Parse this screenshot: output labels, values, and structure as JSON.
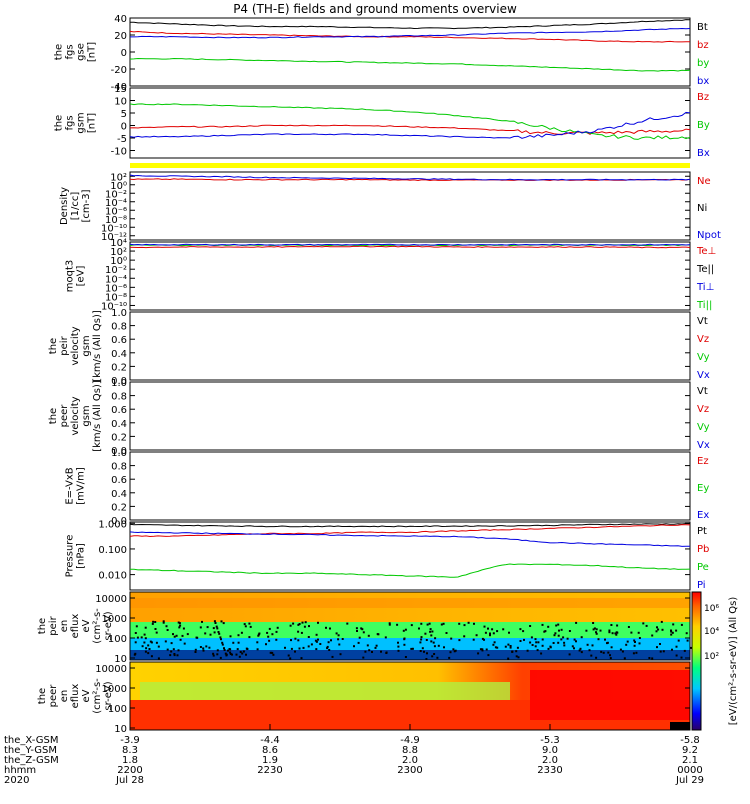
{
  "title": "P4 (TH-E) fields and ground moments overview",
  "colors": {
    "black": "#000000",
    "red": "#e00000",
    "green": "#00c800",
    "blue": "#0000e0",
    "yellow": "#ffff00"
  },
  "panels": [
    {
      "id": "fgs-gse",
      "ylabel_lines": [
        "the",
        "fgs",
        "gse",
        "[nT]"
      ],
      "ylim": [
        -40,
        40
      ],
      "ticks": [
        {
          "v": 40,
          "t": "40"
        },
        {
          "v": 20,
          "t": "20"
        },
        {
          "v": 0,
          "t": "0"
        },
        {
          "v": -20,
          "t": "-20"
        },
        {
          "v": -40,
          "t": "-40"
        }
      ],
      "legend": [
        {
          "t": "Bt",
          "c": "black"
        },
        {
          "t": "bz",
          "c": "red"
        },
        {
          "t": "by",
          "c": "green"
        },
        {
          "t": "bx",
          "c": "blue"
        }
      ]
    },
    {
      "id": "fgs-gsm",
      "ylabel_lines": [
        "the",
        "fgs",
        "gsm",
        "[nT]"
      ],
      "ylim": [
        -13,
        15
      ],
      "ticks": [
        {
          "v": 15,
          "t": "15"
        },
        {
          "v": 10,
          "t": "10"
        },
        {
          "v": 5,
          "t": "5"
        },
        {
          "v": 0,
          "t": "0"
        },
        {
          "v": -5,
          "t": "-5"
        },
        {
          "v": -10,
          "t": "-10"
        }
      ],
      "legend": [
        {
          "t": "Bz",
          "c": "red"
        },
        {
          "t": "By",
          "c": "green"
        },
        {
          "t": "Bx",
          "c": "blue"
        }
      ]
    },
    {
      "id": "density",
      "ylabel_lines": [
        "Density",
        "[1/cc]",
        "[cm-3]"
      ],
      "ylim": [
        -13,
        3
      ],
      "ticks": [
        {
          "v": 2,
          "t": "10²"
        },
        {
          "v": 0,
          "t": "10⁰"
        },
        {
          "v": -2,
          "t": "10⁻²"
        },
        {
          "v": -4,
          "t": "10⁻⁴"
        },
        {
          "v": -6,
          "t": "10⁻⁶"
        },
        {
          "v": -8,
          "t": "10⁻⁸"
        },
        {
          "v": -10,
          "t": "10⁻¹⁰"
        },
        {
          "v": -12,
          "t": "10⁻¹²"
        }
      ],
      "legend": [
        {
          "t": "Ne",
          "c": "red"
        },
        {
          "t": "Ni",
          "c": "black"
        },
        {
          "t": "Npot",
          "c": "blue"
        }
      ]
    },
    {
      "id": "temperature",
      "ylabel_lines": [
        "moqt3",
        "[eV]"
      ],
      "ylim": [
        -11,
        4
      ],
      "ticks": [
        {
          "v": 4,
          "t": "10⁴"
        },
        {
          "v": 2,
          "t": "10²"
        },
        {
          "v": 0,
          "t": "10⁰"
        },
        {
          "v": -2,
          "t": "10⁻²"
        },
        {
          "v": -4,
          "t": "10⁻⁴"
        },
        {
          "v": -6,
          "t": "10⁻⁶"
        },
        {
          "v": -8,
          "t": "10⁻⁸"
        },
        {
          "v": -10,
          "t": "10⁻¹⁰"
        }
      ],
      "legend": [
        {
          "t": "Te⊥",
          "c": "red"
        },
        {
          "t": "Te||",
          "c": "black"
        },
        {
          "t": "Ti⊥",
          "c": "blue"
        },
        {
          "t": "Ti||",
          "c": "green"
        }
      ]
    },
    {
      "id": "peir-velocity",
      "ylabel_lines": [
        "the",
        "peir",
        "velocity",
        "gsm",
        "[km/s (All Qs)]"
      ],
      "ylim": [
        0,
        1
      ],
      "ticks": [
        {
          "v": 1,
          "t": "1.0"
        },
        {
          "v": 0.8,
          "t": "0.8"
        },
        {
          "v": 0.6,
          "t": "0.6"
        },
        {
          "v": 0.4,
          "t": "0.4"
        },
        {
          "v": 0.2,
          "t": "0.2"
        },
        {
          "v": 0,
          "t": "0.0"
        }
      ],
      "legend": [
        {
          "t": "Vt",
          "c": "black"
        },
        {
          "t": "Vz",
          "c": "red"
        },
        {
          "t": "Vy",
          "c": "green"
        },
        {
          "t": "Vx",
          "c": "blue"
        }
      ]
    },
    {
      "id": "peer-velocity",
      "ylabel_lines": [
        "the",
        "peer",
        "velocity",
        "gsm",
        "[km/s (All Qs)]"
      ],
      "ylim": [
        0,
        1
      ],
      "ticks": [
        {
          "v": 1,
          "t": "1.0"
        },
        {
          "v": 0.8,
          "t": "0.8"
        },
        {
          "v": 0.6,
          "t": "0.6"
        },
        {
          "v": 0.4,
          "t": "0.4"
        },
        {
          "v": 0.2,
          "t": "0.2"
        },
        {
          "v": 0,
          "t": "0.0"
        }
      ],
      "legend": [
        {
          "t": "Vt",
          "c": "black"
        },
        {
          "t": "Vz",
          "c": "red"
        },
        {
          "t": "Vy",
          "c": "green"
        },
        {
          "t": "Vx",
          "c": "blue"
        }
      ]
    },
    {
      "id": "efield",
      "ylabel_lines": [
        "E=-VxB",
        "[mV/m]"
      ],
      "ylim": [
        0,
        1
      ],
      "ticks": [
        {
          "v": 1,
          "t": "1.0"
        },
        {
          "v": 0.8,
          "t": "0.8"
        },
        {
          "v": 0.6,
          "t": "0.6"
        },
        {
          "v": 0.4,
          "t": "0.4"
        },
        {
          "v": 0.2,
          "t": "0.2"
        },
        {
          "v": 0,
          "t": "0.0"
        }
      ],
      "legend": [
        {
          "t": "Ez",
          "c": "red"
        },
        {
          "t": "Ey",
          "c": "green"
        },
        {
          "t": "Ex",
          "c": "blue"
        }
      ]
    },
    {
      "id": "pressure",
      "ylabel_lines": [
        "Pressure",
        "[nPa]"
      ],
      "ylim": [
        -2.6,
        0.05
      ],
      "ticks": [
        {
          "v": 0,
          "t": "1.000"
        },
        {
          "v": -1,
          "t": "0.100"
        },
        {
          "v": -2,
          "t": "0.010"
        }
      ],
      "legend": [
        {
          "t": "Pt",
          "c": "black"
        },
        {
          "t": "Pb",
          "c": "red"
        },
        {
          "t": "Pe",
          "c": "green"
        },
        {
          "t": "Pi",
          "c": "blue"
        }
      ]
    },
    {
      "id": "peir-spec",
      "ylabel_lines": [
        "the",
        "peir",
        "en",
        "eflux",
        "eV",
        "(cm²-s-",
        "sr-eV)"
      ],
      "ylim": [
        0.9,
        4.3
      ],
      "ticks": [
        {
          "v": 4,
          "t": "10000"
        },
        {
          "v": 3,
          "t": "1000"
        },
        {
          "v": 2,
          "t": "100"
        },
        {
          "v": 1,
          "t": "10"
        }
      ],
      "legend": []
    },
    {
      "id": "peer-spec",
      "ylabel_lines": [
        "the",
        "peer",
        "en",
        "eflux",
        "eV",
        "(cm²-s-",
        "sr-eV)"
      ],
      "ylim": [
        0.9,
        4.3
      ],
      "ticks": [
        {
          "v": 4,
          "t": "10000"
        },
        {
          "v": 3,
          "t": "1000"
        },
        {
          "v": 2,
          "t": "100"
        },
        {
          "v": 1,
          "t": "10"
        }
      ],
      "legend": []
    }
  ],
  "colorbar": {
    "ticks": [
      "10⁶",
      "10⁴",
      "10²"
    ],
    "label": "[eV/(cm²-s-sr-eV)] (All Qs)"
  },
  "xaxis": {
    "rows": [
      {
        "label": "the_X-GSM",
        "values": [
          "-3.9",
          "-4.4",
          "-4.9",
          "-5.3",
          "-5.8"
        ]
      },
      {
        "label": "the_Y-GSM",
        "values": [
          "8.3",
          "8.6",
          "8.8",
          "9.0",
          "9.2"
        ]
      },
      {
        "label": "the_Z-GSM",
        "values": [
          "1.8",
          "1.9",
          "2.0",
          "2.0",
          "2.1"
        ]
      },
      {
        "label": "hhmm",
        "values": [
          "2200",
          "2230",
          "2300",
          "2330",
          "0000"
        ]
      },
      {
        "label": "2020",
        "values": [
          "Jul 28",
          "",
          "",
          "",
          "Jul 29"
        ]
      }
    ]
  },
  "chart_data": {
    "type": "line",
    "title": "P4 (TH-E) fields and ground moments overview",
    "x_ticks": [
      "2200",
      "2230",
      "2300",
      "2330",
      "0000"
    ],
    "x_range": [
      "2020-07-28 22:00",
      "2020-07-29 00:00"
    ],
    "series": {
      "fgs-gse": [
        {
          "name": "Bt",
          "color": "black",
          "values": [
            35,
            33,
            31,
            30,
            30,
            29,
            28,
            28,
            29,
            31,
            33,
            36,
            38
          ]
        },
        {
          "name": "bz",
          "color": "red",
          "values": [
            24,
            22,
            21,
            20,
            19,
            18,
            18,
            17,
            16,
            15,
            13,
            12,
            12
          ]
        },
        {
          "name": "by",
          "color": "green",
          "values": [
            -8,
            -8,
            -9,
            -10,
            -11,
            -12,
            -13,
            -14,
            -16,
            -18,
            -20,
            -22,
            -22
          ]
        },
        {
          "name": "bx",
          "color": "blue",
          "values": [
            18,
            18,
            17,
            17,
            18,
            18,
            19,
            20,
            22,
            23,
            24,
            26,
            28
          ]
        }
      ],
      "fgs-gsm": [
        {
          "name": "Bz",
          "color": "red",
          "values": [
            -1,
            -0.5,
            -0.5,
            0,
            0,
            0,
            -0.5,
            -1,
            -2,
            -3,
            -3,
            -2.5,
            -2
          ]
        },
        {
          "name": "By",
          "color": "green",
          "values": [
            8.5,
            8.5,
            8,
            7.5,
            7,
            6.5,
            5.5,
            4,
            2,
            -1,
            -4,
            -5,
            -4.5
          ]
        },
        {
          "name": "Bx",
          "color": "blue",
          "values": [
            -4.5,
            -4.5,
            -4,
            -3.5,
            -3.5,
            -3.5,
            -4,
            -4.5,
            -5,
            -4,
            -2,
            2,
            5
          ]
        }
      ],
      "density": [
        {
          "name": "Ne",
          "color": "red",
          "values": [
            1.3,
            1.3,
            1.2,
            1.2,
            1.2,
            1.2,
            1.1,
            1.1,
            1.1,
            1.1,
            1.1,
            1.2,
            1.2
          ]
        },
        {
          "name": "Npot",
          "color": "blue",
          "values": [
            2.2,
            2.0,
            1.9,
            1.7,
            1.6,
            1.5,
            1.4,
            1.3,
            1.2,
            1.2,
            1.2,
            1.2,
            1.2
          ]
        }
      ],
      "temperature": [
        {
          "name": "Te⊥",
          "color": "red",
          "values": [
            2.8,
            2.9,
            2.9,
            2.9,
            3.0,
            3.0,
            3.0,
            2.9,
            2.9,
            2.9,
            2.9,
            2.8,
            2.8
          ]
        },
        {
          "name": "Ti||",
          "color": "green",
          "values": [
            3.3,
            3.3,
            3.3,
            3.3,
            3.3,
            3.3,
            3.3,
            3.3,
            3.3,
            3.3,
            3.3,
            3.3,
            3.3
          ]
        },
        {
          "name": "Ti⊥",
          "color": "blue",
          "values": [
            3.4,
            3.4,
            3.4,
            3.4,
            3.4,
            3.4,
            3.4,
            3.4,
            3.4,
            3.4,
            3.4,
            3.4,
            3.4
          ]
        }
      ],
      "pressure": [
        {
          "name": "Pt",
          "color": "black",
          "values": [
            -0.05,
            -0.08,
            -0.1,
            -0.12,
            -0.12,
            -0.12,
            -0.12,
            -0.11,
            -0.1,
            -0.08,
            -0.05,
            -0.03,
            -0.02
          ]
        },
        {
          "name": "Pb",
          "color": "red",
          "values": [
            -0.5,
            -0.5,
            -0.45,
            -0.4,
            -0.4,
            -0.35,
            -0.35,
            -0.3,
            -0.25,
            -0.2,
            -0.15,
            -0.1,
            -0.05
          ]
        },
        {
          "name": "Pe",
          "color": "green",
          "values": [
            -1.8,
            -1.85,
            -1.9,
            -1.95,
            -1.95,
            -2.0,
            -2.05,
            -2.1,
            -1.6,
            -1.6,
            -1.65,
            -1.75,
            -1.8
          ]
        },
        {
          "name": "Pi",
          "color": "blue",
          "values": [
            -0.35,
            -0.37,
            -0.4,
            -0.42,
            -0.45,
            -0.48,
            -0.5,
            -0.52,
            -0.6,
            -0.75,
            -0.8,
            -0.85,
            -0.9
          ]
        }
      ]
    }
  }
}
